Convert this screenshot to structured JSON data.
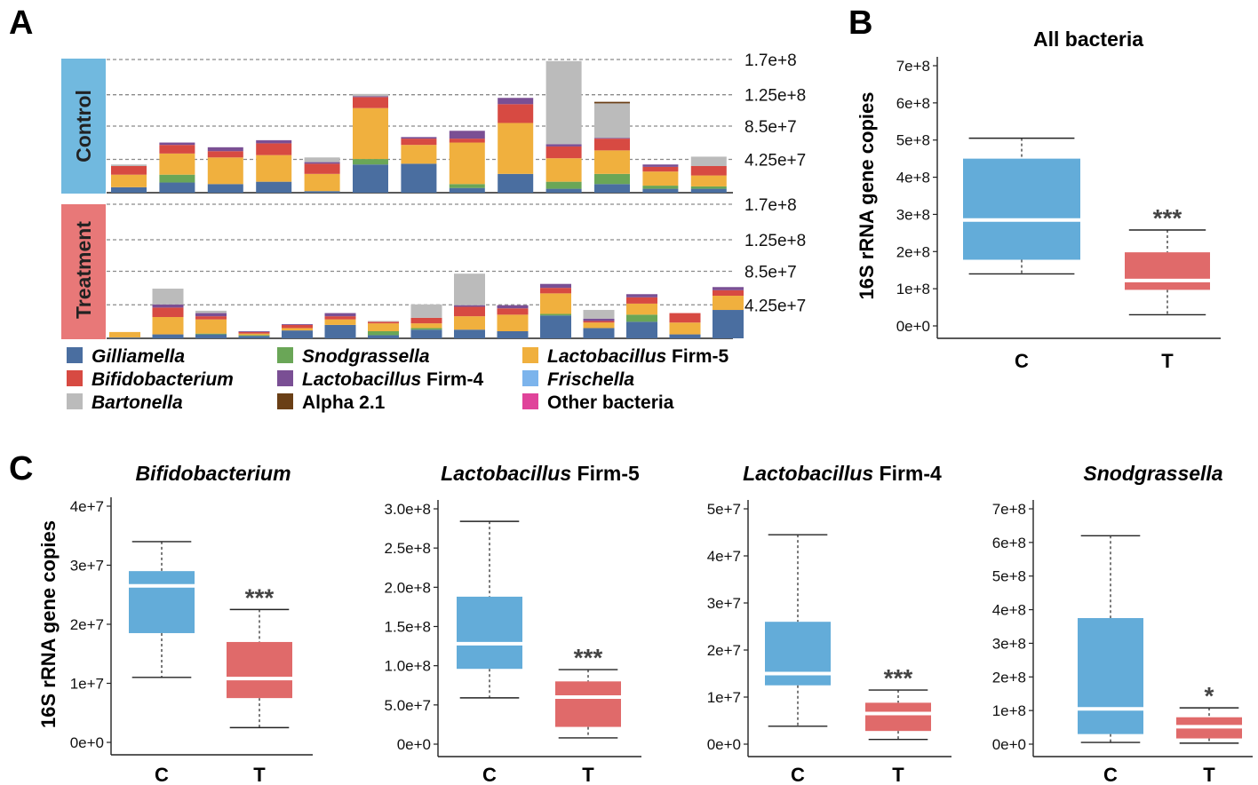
{
  "panel_labels": [
    "A",
    "B",
    "C"
  ],
  "colors": {
    "box_control": "#63acd9",
    "box_treatment": "#e06a6a",
    "group_control": "#71b9df",
    "group_treatment": "#e87878"
  },
  "chart_data": [
    {
      "panel": "A",
      "type": "bar",
      "stacked": true,
      "groups": [
        "Control",
        "Treatment"
      ],
      "right_tick_labels": [
        "1.7e+8",
        "1.25e+8",
        "8.5e+7",
        "4.25e+7"
      ],
      "ylim": [
        0,
        170000000
      ],
      "grid": "dashed at right tick values",
      "legend_position": "bottom",
      "legend": [
        {
          "name": "Gilliamella",
          "suffix": "",
          "italic": true,
          "color": "#4a6ea0"
        },
        {
          "name": "Snodgrassella",
          "suffix": "",
          "italic": true,
          "color": "#6aa657"
        },
        {
          "name": "Lactobacillus",
          "suffix": " Firm-5",
          "italic": true,
          "color": "#f0b03e"
        },
        {
          "name": "Bifidobacterium",
          "suffix": "",
          "italic": true,
          "color": "#d74a42"
        },
        {
          "name": "Lactobacillus",
          "suffix": " Firm-4",
          "italic": true,
          "color": "#7a4f94"
        },
        {
          "name": "Frischella",
          "suffix": "",
          "italic": true,
          "color": "#7cb4ec"
        },
        {
          "name": "Bartonella",
          "suffix": "",
          "italic": true,
          "color": "#bbbbbb"
        },
        {
          "name": "Alpha 2.1",
          "suffix": "",
          "italic": false,
          "color": "#6a3f16"
        },
        {
          "name": "Other bacteria",
          "suffix": "",
          "italic": false,
          "color": "#e0439a"
        }
      ],
      "stack_order": [
        "Gilliamella",
        "Snodgrassella",
        "Lactobacillus Firm-5",
        "Bifidobacterium",
        "Lactobacillus Firm-4",
        "Frischella",
        "Bartonella",
        "Alpha 2.1",
        "Other bacteria"
      ],
      "control": [
        [
          7,
          0,
          16,
          11,
          0,
          0,
          2,
          0,
          0
        ],
        [
          13,
          10,
          27,
          11,
          3,
          0,
          0,
          0,
          0
        ],
        [
          11,
          0,
          34,
          8,
          5,
          0,
          0,
          0,
          0
        ],
        [
          14,
          0,
          34,
          15,
          4,
          0,
          0,
          0,
          0
        ],
        [
          2,
          0,
          22,
          13,
          2,
          0,
          6,
          0,
          0
        ],
        [
          36,
          7,
          65,
          14,
          1,
          0,
          3,
          0,
          0
        ],
        [
          37,
          0,
          24,
          8,
          2,
          0,
          0,
          0,
          0
        ],
        [
          6,
          5,
          53,
          5,
          10,
          0,
          0,
          0,
          0
        ],
        [
          24,
          0,
          65,
          24,
          8,
          0,
          0,
          0,
          0
        ],
        [
          5,
          9,
          30,
          15,
          3,
          0,
          106,
          0,
          0
        ],
        [
          11,
          13,
          30,
          15,
          1,
          0,
          44,
          2,
          0
        ],
        [
          5,
          4,
          18,
          6,
          3,
          0,
          0,
          0,
          0
        ],
        [
          5,
          3,
          14,
          12,
          0,
          0,
          12,
          0,
          0
        ]
      ],
      "treatment": [
        [
          1,
          0,
          7,
          0,
          0,
          0,
          0,
          0,
          0
        ],
        [
          5,
          0,
          22,
          12,
          4,
          0,
          20,
          0,
          0
        ],
        [
          5,
          1,
          18,
          4,
          4,
          0,
          3,
          0,
          0
        ],
        [
          3,
          1,
          2,
          2,
          1,
          0,
          0,
          0,
          0
        ],
        [
          10,
          0,
          3,
          4,
          1,
          0,
          0,
          0,
          0
        ],
        [
          17,
          0,
          7,
          4,
          4,
          0,
          0,
          0,
          0
        ],
        [
          4,
          5,
          10,
          2,
          0,
          0,
          1,
          0,
          0
        ],
        [
          11,
          2,
          6,
          7,
          0,
          0,
          17,
          0,
          0
        ],
        [
          11,
          0,
          17,
          12,
          2,
          0,
          40,
          0,
          0
        ],
        [
          9,
          0,
          21,
          8,
          4,
          0,
          0,
          0,
          0
        ],
        [
          29,
          2,
          26,
          7,
          5,
          0,
          0,
          0,
          0
        ],
        [
          13,
          0,
          7,
          2,
          3,
          0,
          11,
          0,
          0
        ],
        [
          21,
          9,
          14,
          8,
          4,
          0,
          0,
          0,
          0
        ],
        [
          5,
          0,
          15,
          12,
          0,
          0,
          0,
          0,
          0
        ],
        [
          36,
          0,
          18,
          7,
          4,
          0,
          0,
          0,
          0
        ]
      ]
    },
    {
      "panel": "B",
      "type": "box",
      "title": "All bacteria",
      "title_suffix": "",
      "title_italic": false,
      "ylabel": "16S rRNA gene copies",
      "ytick_labels": [
        "0e+0",
        "1e+8",
        "2e+8",
        "3e+8",
        "4e+8",
        "5e+8",
        "6e+8",
        "7e+8"
      ],
      "ylim": [
        0,
        700000000
      ],
      "categories": [
        "C",
        "T"
      ],
      "boxes": [
        {
          "label": "C",
          "whisker_low": 140000000,
          "q1": 178000000,
          "median": 285000000,
          "q3": 450000000,
          "whisker_high": 505000000,
          "sig": ""
        },
        {
          "label": "T",
          "whisker_low": 30000000,
          "q1": 97000000,
          "median": 122000000,
          "q3": 198000000,
          "whisker_high": 258000000,
          "sig": "***"
        }
      ]
    },
    {
      "panel": "C",
      "type": "box",
      "title": "Bifidobacterium",
      "title_suffix": "",
      "title_italic": true,
      "ylabel": "16S rRNA gene copies",
      "ytick_labels": [
        "0e+0",
        "1e+7",
        "2e+7",
        "3e+7",
        "4e+7"
      ],
      "ylim": [
        0,
        40000000
      ],
      "categories": [
        "C",
        "T"
      ],
      "boxes": [
        {
          "label": "C",
          "whisker_low": 11000000,
          "q1": 18500000,
          "median": 26500000,
          "q3": 29000000,
          "whisker_high": 34000000,
          "sig": ""
        },
        {
          "label": "T",
          "whisker_low": 2500000,
          "q1": 7500000,
          "median": 10800000,
          "q3": 17000000,
          "whisker_high": 22500000,
          "sig": "***"
        }
      ]
    },
    {
      "panel": "C",
      "type": "box",
      "title": "Lactobacillus",
      "title_suffix": " Firm-5",
      "title_italic": true,
      "ylabel": "",
      "ytick_labels": [
        "0e+0",
        "5.0e+7",
        "1.0e+8",
        "1.5e+8",
        "2.0e+8",
        "2.5e+8",
        "3.0e+8"
      ],
      "ylim": [
        0,
        300000000
      ],
      "categories": [
        "C",
        "T"
      ],
      "boxes": [
        {
          "label": "C",
          "whisker_low": 59000000,
          "q1": 96000000,
          "median": 128000000,
          "q3": 188000000,
          "whisker_high": 284000000,
          "sig": ""
        },
        {
          "label": "T",
          "whisker_low": 8000000,
          "q1": 22000000,
          "median": 60000000,
          "q3": 80000000,
          "whisker_high": 95000000,
          "sig": "***"
        }
      ]
    },
    {
      "panel": "C",
      "type": "box",
      "title": "Lactobacillus",
      "title_suffix": " Firm-4",
      "title_italic": true,
      "ylabel": "",
      "ytick_labels": [
        "0e+0",
        "1e+7",
        "2e+7",
        "3e+7",
        "4e+7",
        "5e+7"
      ],
      "ylim": [
        0,
        50000000
      ],
      "categories": [
        "C",
        "T"
      ],
      "boxes": [
        {
          "label": "C",
          "whisker_low": 3800000,
          "q1": 12500000,
          "median": 15000000,
          "q3": 26000000,
          "whisker_high": 44500000,
          "sig": ""
        },
        {
          "label": "T",
          "whisker_low": 1000000,
          "q1": 2800000,
          "median": 6500000,
          "q3": 8800000,
          "whisker_high": 11500000,
          "sig": "***"
        }
      ]
    },
    {
      "panel": "C",
      "type": "box",
      "title": "Snodgrassella",
      "title_suffix": "",
      "title_italic": true,
      "ylabel": "",
      "ytick_labels": [
        "0e+0",
        "1e+8",
        "2e+8",
        "3e+8",
        "4e+8",
        "5e+8",
        "6e+8",
        "7e+8"
      ],
      "ylim": [
        0,
        700000000
      ],
      "categories": [
        "C",
        "T"
      ],
      "boxes": [
        {
          "label": "C",
          "whisker_low": 5000000,
          "q1": 30000000,
          "median": 105000000,
          "q3": 375000000,
          "whisker_high": 620000000,
          "sig": ""
        },
        {
          "label": "T",
          "whisker_low": 3000000,
          "q1": 17000000,
          "median": 52000000,
          "q3": 80000000,
          "whisker_high": 108000000,
          "sig": "*"
        }
      ]
    }
  ]
}
